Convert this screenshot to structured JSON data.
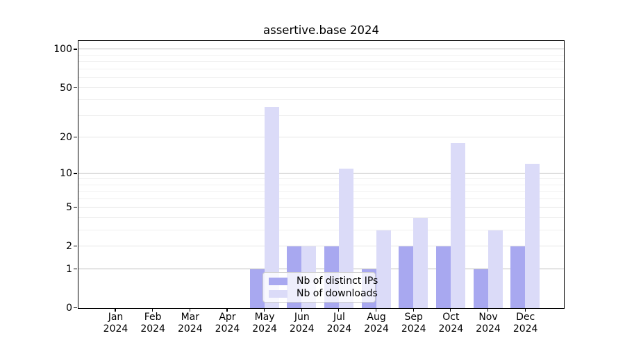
{
  "title": "assertive.base 2024",
  "chart_data": {
    "type": "bar",
    "title": "assertive.base 2024",
    "months": [
      "Jan",
      "Feb",
      "Mar",
      "Apr",
      "May",
      "Jun",
      "Jul",
      "Aug",
      "Sep",
      "Oct",
      "Nov",
      "Dec"
    ],
    "year": "2024",
    "series": [
      {
        "name": "Nb of distinct IPs",
        "color": "#a8a8f0",
        "values": [
          0,
          0,
          0,
          0,
          1,
          2,
          2,
          1,
          2,
          2,
          1,
          2
        ]
      },
      {
        "name": "Nb of downloads",
        "color": "#dbdbf8",
        "values": [
          0,
          0,
          0,
          0,
          35,
          2,
          11,
          3,
          4,
          18,
          3,
          12
        ]
      }
    ],
    "y_axis": {
      "scale": "log1p",
      "tick_values": [
        0,
        1,
        2,
        5,
        10,
        20,
        50,
        100
      ],
      "minor_tick_values": [
        3,
        4,
        6,
        7,
        8,
        9,
        30,
        40,
        60,
        70,
        80,
        90
      ],
      "emphasized_tick_values": [
        1,
        10,
        100
      ],
      "range": [
        0,
        117
      ]
    },
    "grid": {
      "show": true,
      "major_color": "#e4e4e4",
      "emphasis_color": "#bdbdbd",
      "minor_color": "#f0f0f0"
    },
    "legend": {
      "position": "lower center"
    }
  },
  "colors": {
    "background": "#ffffff",
    "spine": "#000000",
    "text": "#000000"
  }
}
